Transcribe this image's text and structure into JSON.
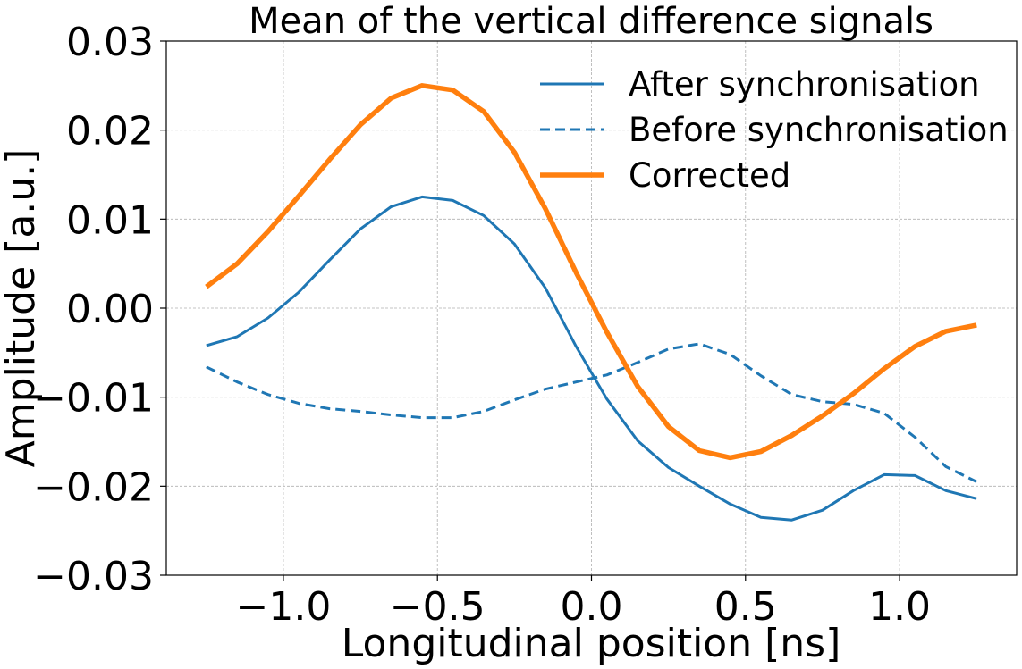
{
  "chart_data": {
    "type": "line",
    "title": "Mean of the vertical difference signals",
    "xlabel": "Longitudinal position [ns]",
    "ylabel": "Amplitude [a.u.]",
    "xlim": [
      -1.38,
      1.38
    ],
    "ylim": [
      -0.03,
      0.03
    ],
    "grid": true,
    "legend_position": "top-right",
    "x_ticks": [
      -1.0,
      -0.5,
      0.0,
      0.5,
      1.0
    ],
    "x_tick_labels": [
      "−1.0",
      "−0.5",
      "0.0",
      "0.5",
      "1.0"
    ],
    "y_ticks": [
      -0.03,
      -0.02,
      -0.01,
      0.0,
      0.01,
      0.02,
      0.03
    ],
    "y_tick_labels": [
      "−0.03",
      "−0.02",
      "−0.01",
      "0.00",
      "0.01",
      "0.02",
      "0.03"
    ],
    "x": [
      -1.25,
      -1.15,
      -1.05,
      -0.95,
      -0.85,
      -0.75,
      -0.65,
      -0.55,
      -0.45,
      -0.35,
      -0.25,
      -0.15,
      -0.05,
      0.05,
      0.15,
      0.25,
      0.35,
      0.45,
      0.55,
      0.65,
      0.75,
      0.85,
      0.95,
      1.05,
      1.15,
      1.25
    ],
    "series": [
      {
        "name": "After synchronisation",
        "color": "#1f77b4",
        "style": "solid",
        "values": [
          -0.0042,
          -0.0032,
          -0.0011,
          0.0018,
          0.0054,
          0.0089,
          0.0114,
          0.0125,
          0.0121,
          0.0104,
          0.0072,
          0.0023,
          -0.0043,
          -0.0102,
          -0.0149,
          -0.0179,
          -0.02,
          -0.022,
          -0.0235,
          -0.0238,
          -0.0227,
          -0.0205,
          -0.0187,
          -0.0188,
          -0.0205,
          -0.0214
        ]
      },
      {
        "name": "Before synchronisation",
        "color": "#1f77b4",
        "style": "dashed",
        "values": [
          -0.0066,
          -0.0083,
          -0.0097,
          -0.0107,
          -0.0113,
          -0.0116,
          -0.012,
          -0.0123,
          -0.0123,
          -0.0116,
          -0.0103,
          -0.0091,
          -0.0083,
          -0.0075,
          -0.0061,
          -0.0046,
          -0.004,
          -0.0052,
          -0.0076,
          -0.0097,
          -0.0105,
          -0.0108,
          -0.0118,
          -0.0145,
          -0.0178,
          -0.0195
        ]
      },
      {
        "name": "Corrected",
        "color": "#ff7f0e",
        "style": "thick",
        "values": [
          0.0024,
          0.005,
          0.0086,
          0.0126,
          0.0167,
          0.0206,
          0.0236,
          0.025,
          0.0245,
          0.0221,
          0.0175,
          0.0112,
          0.004,
          -0.0027,
          -0.0088,
          -0.0133,
          -0.016,
          -0.0168,
          -0.0161,
          -0.0143,
          -0.0121,
          -0.0096,
          -0.0068,
          -0.0043,
          -0.0026,
          -0.0019
        ]
      }
    ]
  }
}
